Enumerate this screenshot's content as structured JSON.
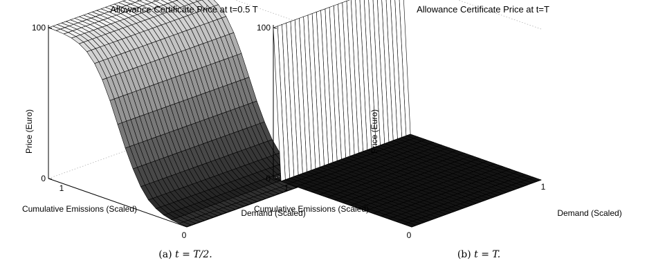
{
  "chart_data": [
    {
      "type": "surface",
      "title": "Allowance Certificate Price at t=0.5 T",
      "caption_prefix": "(a)",
      "caption_math": "t = T/2.",
      "xlabel": "Demand (Scaled)",
      "ylabel": "Cumulative Emissions (Scaled)",
      "zlabel": "Price (Euro)",
      "x_range": [
        0,
        1
      ],
      "y_range": [
        0,
        1
      ],
      "z_range": [
        0,
        100
      ],
      "x_ticks": [
        "0",
        "1"
      ],
      "y_ticks": [
        "1"
      ],
      "z_ticks": [
        "0",
        "100"
      ],
      "grid": true,
      "surface_shape": "smooth logistic step: price ≈ 100 at cumulative emissions 1 falling to ≈ 0 at cumulative emissions 0, constant along demand",
      "grid_x_samples": 30,
      "grid_y_samples": 18,
      "y_profile": [
        100,
        99.8,
        99.4,
        98.5,
        96.5,
        93,
        87,
        78,
        66,
        52,
        38,
        26,
        16,
        9,
        5,
        2.5,
        1.2,
        0.5,
        0.2
      ]
    },
    {
      "type": "surface",
      "title": "Allowance Certificate Price at t=T",
      "caption_prefix": "(b)",
      "caption_math": "t = T.",
      "xlabel": "Demand (Scaled)",
      "ylabel": "Cumulative Emissions (Scaled)",
      "zlabel": "Price (Euro)",
      "x_range": [
        0,
        1
      ],
      "y_range": [
        0,
        1
      ],
      "z_range": [
        0,
        100
      ],
      "x_ticks": [
        "0",
        "1"
      ],
      "y_ticks": [
        "1"
      ],
      "z_ticks": [
        "0",
        "100"
      ],
      "grid": true,
      "surface_shape": "step function: price = 100 only at cumulative emissions 1, price = 0 elsewhere",
      "grid_x_samples": 30,
      "grid_y_samples": 18,
      "y_profile": [
        100,
        0,
        0,
        0,
        0,
        0,
        0,
        0,
        0,
        0,
        0,
        0,
        0,
        0,
        0,
        0,
        0,
        0,
        0
      ]
    }
  ]
}
